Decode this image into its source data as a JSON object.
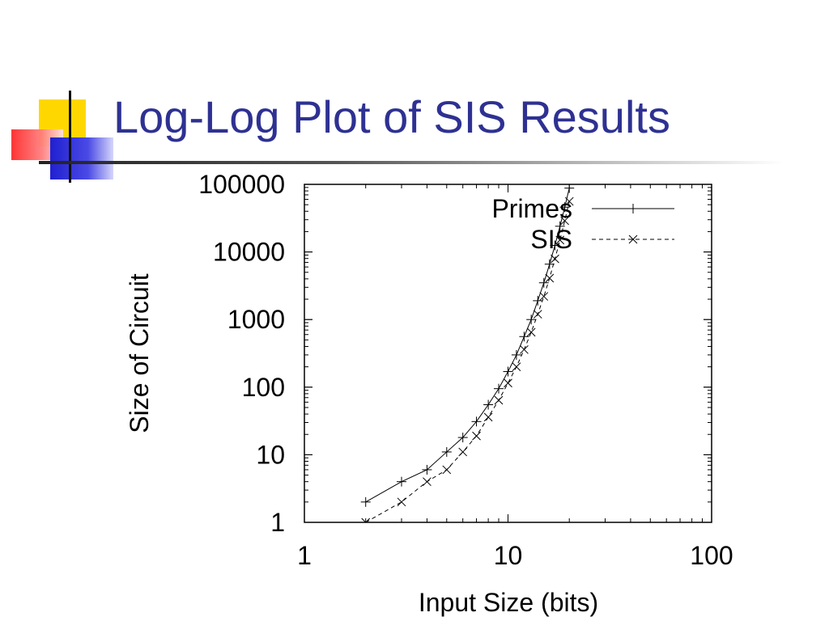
{
  "slide": {
    "title": "Log-Log Plot of SIS Results",
    "colors": {
      "title": "#2e3192",
      "accent_yellow": "#ffd700",
      "accent_red": "#ff3333",
      "accent_blue": "#2b2bd6"
    }
  },
  "chart_data": {
    "type": "line",
    "title": "",
    "xlabel": "Input Size (bits)",
    "ylabel": "Size of Circuit",
    "xscale": "log",
    "yscale": "log",
    "xlim": [
      1,
      100
    ],
    "ylim": [
      1,
      100000
    ],
    "xticks": [
      1,
      10,
      100
    ],
    "xtick_labels": [
      "1",
      "10",
      "100"
    ],
    "yticks": [
      1,
      10,
      100,
      1000,
      10000,
      100000
    ],
    "ytick_labels": [
      "1",
      "10",
      "100",
      "1000",
      "10000",
      "100000"
    ],
    "legend_position": "top-right",
    "series": [
      {
        "name": "Primes",
        "marker": "+",
        "line": "solid",
        "x": [
          2,
          3,
          4,
          5,
          6,
          7,
          8,
          9,
          10,
          11,
          12,
          13,
          14,
          15,
          16,
          17,
          18,
          19,
          20
        ],
        "y": [
          2,
          4,
          6,
          11,
          18,
          31,
          55,
          95,
          170,
          300,
          560,
          1000,
          1900,
          3500,
          6600,
          12500,
          24000,
          46000,
          88000
        ]
      },
      {
        "name": "SIS",
        "marker": "x",
        "line": "dashed",
        "x": [
          2,
          3,
          4,
          5,
          6,
          7,
          8,
          9,
          10,
          11,
          12,
          13,
          14,
          15,
          16,
          17,
          18,
          19,
          20
        ],
        "y": [
          1,
          2,
          4,
          6,
          11,
          19,
          36,
          64,
          115,
          200,
          360,
          650,
          1200,
          2200,
          4100,
          7900,
          15000,
          29000,
          56000
        ]
      }
    ]
  }
}
